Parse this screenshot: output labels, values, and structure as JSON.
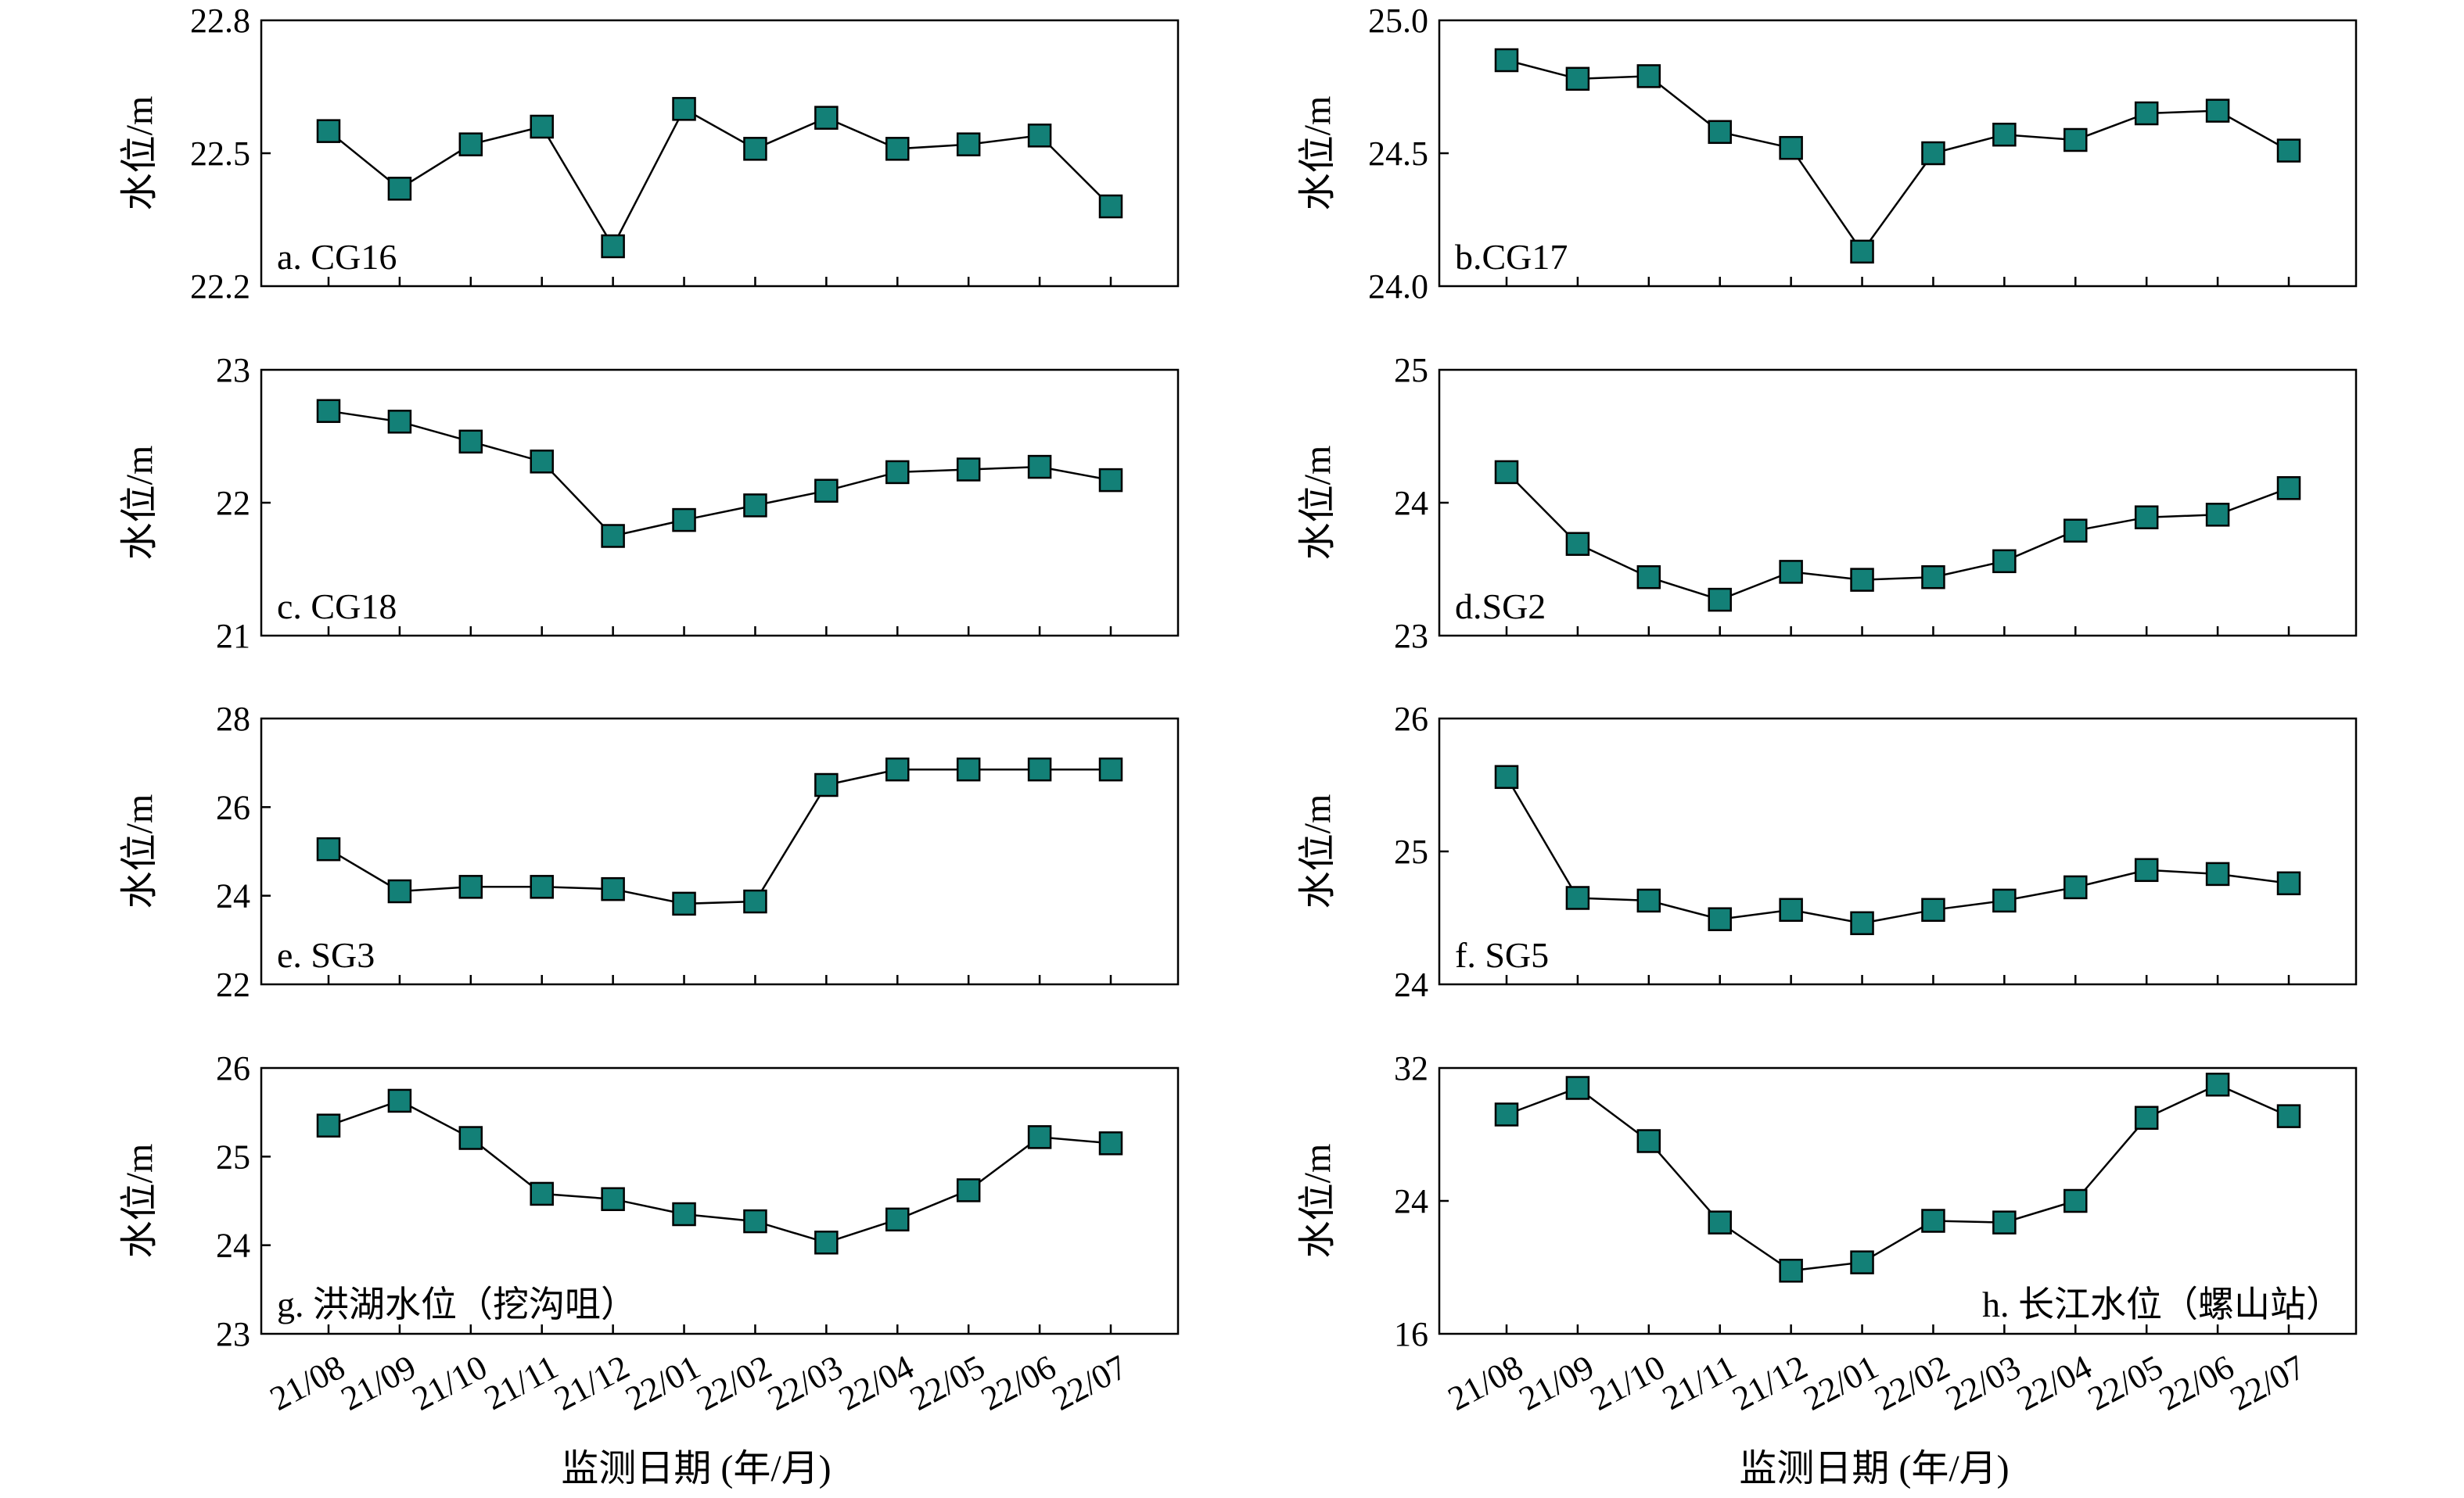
{
  "colors": {
    "marker_fill": "#138077",
    "line": "#000000",
    "frame": "#000000"
  },
  "chart_data": [
    {
      "type": "line",
      "panel_label": "a. CG16",
      "label_position": "bottom-left",
      "ylabel": "水位/m",
      "xlabel": "",
      "ylim": [
        22.2,
        22.8
      ],
      "yticks": [
        22.2,
        22.5,
        22.8
      ],
      "ytick_labels": [
        "22.2",
        "22.5",
        "22.8"
      ],
      "categories": [
        "21/08",
        "21/09",
        "21/10",
        "21/11",
        "21/12",
        "22/01",
        "22/02",
        "22/03",
        "22/04",
        "22/05",
        "22/06",
        "22/07"
      ],
      "show_xtick_labels": false,
      "values": [
        22.55,
        22.42,
        22.52,
        22.56,
        22.29,
        22.6,
        22.51,
        22.58,
        22.51,
        22.52,
        22.54,
        22.38
      ]
    },
    {
      "type": "line",
      "panel_label": "b.CG17",
      "label_position": "bottom-left",
      "ylabel": "水位/m",
      "xlabel": "",
      "ylim": [
        24.0,
        25.0
      ],
      "yticks": [
        24.0,
        24.5,
        25.0
      ],
      "ytick_labels": [
        "24.0",
        "24.5",
        "25.0"
      ],
      "categories": [
        "21/08",
        "21/09",
        "21/10",
        "21/11",
        "21/12",
        "22/01",
        "22/02",
        "22/03",
        "22/04",
        "22/05",
        "22/06",
        "22/07"
      ],
      "show_xtick_labels": false,
      "values": [
        24.85,
        24.78,
        24.79,
        24.58,
        24.52,
        24.13,
        24.5,
        24.57,
        24.55,
        24.65,
        24.66,
        24.51
      ]
    },
    {
      "type": "line",
      "panel_label": "c. CG18",
      "label_position": "bottom-left",
      "ylabel": "水位/m",
      "xlabel": "",
      "ylim": [
        21,
        23
      ],
      "yticks": [
        21,
        22,
        23
      ],
      "ytick_labels": [
        "21",
        "22",
        "23"
      ],
      "categories": [
        "21/08",
        "21/09",
        "21/10",
        "21/11",
        "21/12",
        "22/01",
        "22/02",
        "22/03",
        "22/04",
        "22/05",
        "22/06",
        "22/07"
      ],
      "show_xtick_labels": false,
      "values": [
        22.69,
        22.61,
        22.46,
        22.31,
        21.75,
        21.87,
        21.98,
        22.09,
        22.23,
        22.25,
        22.27,
        22.17
      ]
    },
    {
      "type": "line",
      "panel_label": "d.SG2",
      "label_position": "bottom-left",
      "ylabel": "水位/m",
      "xlabel": "",
      "ylim": [
        23,
        25
      ],
      "yticks": [
        23,
        24,
        25
      ],
      "ytick_labels": [
        "23",
        "24",
        "25"
      ],
      "categories": [
        "21/08",
        "21/09",
        "21/10",
        "21/11",
        "21/12",
        "22/01",
        "22/02",
        "22/03",
        "22/04",
        "22/05",
        "22/06",
        "22/07"
      ],
      "show_xtick_labels": false,
      "values": [
        24.23,
        23.69,
        23.44,
        23.27,
        23.48,
        23.42,
        23.44,
        23.56,
        23.79,
        23.89,
        23.91,
        24.11
      ]
    },
    {
      "type": "line",
      "panel_label": "e. SG3",
      "label_position": "bottom-left",
      "ylabel": "水位/m",
      "xlabel": "",
      "ylim": [
        22,
        28
      ],
      "yticks": [
        22,
        24,
        26,
        28
      ],
      "ytick_labels": [
        "22",
        "24",
        "26",
        "28"
      ],
      "categories": [
        "21/08",
        "21/09",
        "21/10",
        "21/11",
        "21/12",
        "22/01",
        "22/02",
        "22/03",
        "22/04",
        "22/05",
        "22/06",
        "22/07"
      ],
      "show_xtick_labels": false,
      "values": [
        25.05,
        24.1,
        24.2,
        24.2,
        24.15,
        23.82,
        23.87,
        26.5,
        26.85,
        26.85,
        26.85,
        26.85
      ]
    },
    {
      "type": "line",
      "panel_label": "f. SG5",
      "label_position": "bottom-left",
      "ylabel": "水位/m",
      "xlabel": "",
      "ylim": [
        24,
        26
      ],
      "yticks": [
        24,
        25,
        26
      ],
      "ytick_labels": [
        "24",
        "25",
        "26"
      ],
      "categories": [
        "21/08",
        "21/09",
        "21/10",
        "21/11",
        "21/12",
        "22/01",
        "22/02",
        "22/03",
        "22/04",
        "22/05",
        "22/06",
        "22/07"
      ],
      "show_xtick_labels": false,
      "values": [
        25.56,
        24.65,
        24.63,
        24.49,
        24.56,
        24.46,
        24.56,
        24.63,
        24.73,
        24.86,
        24.83,
        24.76
      ]
    },
    {
      "type": "line",
      "panel_label": "g. 洪湖水位（挖沟咀）",
      "label_position": "bottom-left",
      "ylabel": "水位/m",
      "xlabel": "监测日期 (年/月)",
      "ylim": [
        23,
        26
      ],
      "yticks": [
        23,
        24,
        25,
        26
      ],
      "ytick_labels": [
        "23",
        "24",
        "25",
        "26"
      ],
      "categories": [
        "21/08",
        "21/09",
        "21/10",
        "21/11",
        "21/12",
        "22/01",
        "22/02",
        "22/03",
        "22/04",
        "22/05",
        "22/06",
        "22/07"
      ],
      "show_xtick_labels": true,
      "values": [
        25.35,
        25.63,
        25.21,
        24.58,
        24.52,
        24.35,
        24.27,
        24.03,
        24.29,
        24.62,
        25.22,
        25.15
      ]
    },
    {
      "type": "line",
      "panel_label": "h. 长江水位（螺山站）",
      "label_position": "bottom-right",
      "ylabel": "水位/m",
      "xlabel": "监测日期 (年/月)",
      "ylim": [
        16,
        32
      ],
      "yticks": [
        16,
        24,
        32
      ],
      "ytick_labels": [
        "16",
        "24",
        "32"
      ],
      "categories": [
        "21/08",
        "21/09",
        "21/10",
        "21/11",
        "21/12",
        "22/01",
        "22/02",
        "22/03",
        "22/04",
        "22/05",
        "22/06",
        "22/07"
      ],
      "show_xtick_labels": true,
      "values": [
        29.2,
        30.8,
        27.6,
        22.7,
        19.8,
        20.3,
        22.8,
        22.7,
        24.0,
        29.0,
        31.0,
        29.1
      ]
    }
  ]
}
